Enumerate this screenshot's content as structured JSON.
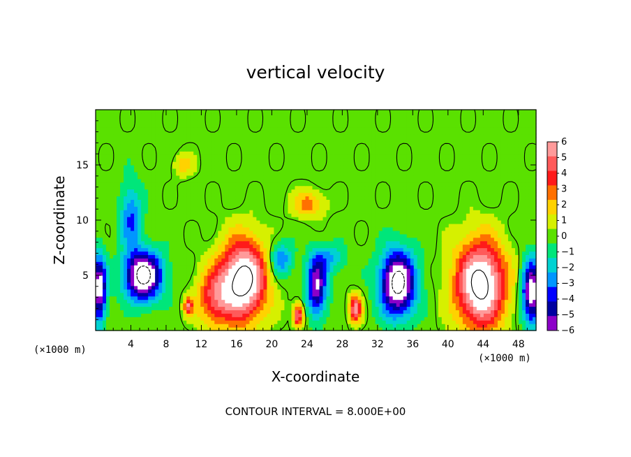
{
  "chart_data": {
    "type": "heatmap",
    "title": "vertical velocity",
    "xlabel": "X-coordinate",
    "ylabel": "Z-coordinate",
    "x_unit_label": "(×1000 m)",
    "y_unit_label": "(×1000 m)",
    "xlim": [
      0,
      50
    ],
    "ylim": [
      0,
      20
    ],
    "x_ticks": [
      4,
      8,
      12,
      16,
      20,
      24,
      28,
      32,
      36,
      40,
      44,
      48
    ],
    "y_ticks": [
      5,
      10,
      15
    ],
    "footnote": "CONTOUR INTERVAL = 8.000E+00",
    "colorbar": {
      "min": -6,
      "max": 6,
      "labels": [
        "6",
        "5",
        "4",
        "3",
        "2",
        "1",
        "0",
        "−1",
        "−2",
        "−3",
        "−4",
        "−5",
        "−6"
      ],
      "colors": [
        "#ff9a9a",
        "#ff5a5a",
        "#ff1a1a",
        "#ff7000",
        "#ffd200",
        "#d6f000",
        "#5ae100",
        "#00e67a",
        "#00d2d2",
        "#0096ff",
        "#0000ff",
        "#0000a0",
        "#8c00c8"
      ],
      "saturation_color": "#ffffff",
      "background_color": "#28e664"
    },
    "features": [
      {
        "name": "updraft",
        "x": 16.8,
        "z": 4.6,
        "rx": 2.6,
        "rz": 3.6,
        "w": 9
      },
      {
        "name": "updraft",
        "x": 13.5,
        "z": 3.0,
        "rx": 2.0,
        "rz": 2.6,
        "w": 4.2
      },
      {
        "name": "updraft",
        "x": 43.7,
        "z": 4.2,
        "rx": 2.8,
        "rz": 3.9,
        "w": 9
      },
      {
        "name": "downdraft",
        "x": 5.4,
        "z": 5.0,
        "rx": 2.1,
        "rz": 2.2,
        "w": -9
      },
      {
        "name": "downdraft",
        "x": 4.0,
        "z": 10.3,
        "rx": 1.2,
        "rz": 3.0,
        "w": -3.6
      },
      {
        "name": "downdraft",
        "x": 25.1,
        "z": 4.0,
        "rx": 1.1,
        "rz": 2.6,
        "w": -6.5
      },
      {
        "name": "downdraft",
        "x": 34.3,
        "z": 4.3,
        "rx": 2.0,
        "rz": 2.9,
        "w": -9
      },
      {
        "name": "downdraft",
        "x": 49.5,
        "z": 3.5,
        "rx": 1.1,
        "rz": 3.0,
        "w": -7.5
      },
      {
        "name": "downdraft",
        "x": 0.4,
        "z": 3.8,
        "rx": 0.8,
        "rz": 3.0,
        "w": -7.5
      },
      {
        "name": "updraft",
        "x": 23.0,
        "z": 1.4,
        "rx": 0.6,
        "rz": 1.0,
        "w": 6
      },
      {
        "name": "updraft",
        "x": 29.5,
        "z": 2.0,
        "rx": 0.7,
        "rz": 1.2,
        "w": 6
      },
      {
        "name": "updraft",
        "x": 24.2,
        "z": 11.5,
        "rx": 1.8,
        "rz": 1.2,
        "w": 3
      },
      {
        "name": "updraft",
        "x": 10.0,
        "z": 15.0,
        "rx": 1.1,
        "rz": 1.0,
        "w": 2
      },
      {
        "name": "updraft",
        "x": 10.5,
        "z": 2.2,
        "rx": 0.5,
        "rz": 0.8,
        "w": 5
      },
      {
        "name": "downdraft",
        "x": 26.5,
        "z": 6.5,
        "rx": 1.8,
        "rz": 1.3,
        "w": -2.5
      },
      {
        "name": "downdraft",
        "x": 21.0,
        "z": 6.5,
        "rx": 1.3,
        "rz": 1.6,
        "w": -3.5
      }
    ]
  }
}
